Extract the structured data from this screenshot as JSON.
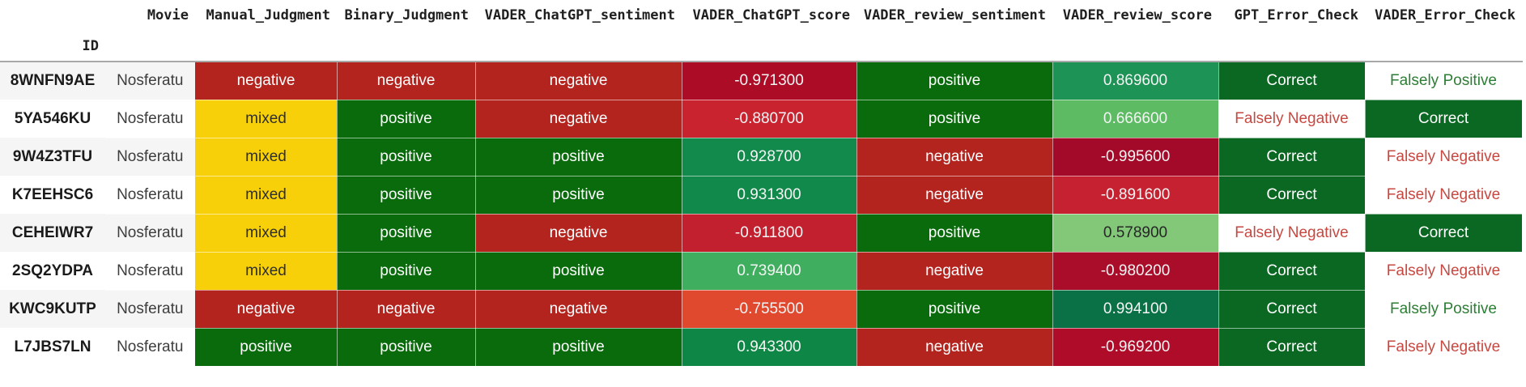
{
  "page": {
    "background": "#ffffff",
    "description": "Styled DataFrame output of movie review sentiment judgments"
  },
  "table": {
    "index_name": "ID",
    "columns": [
      "Movie",
      "Manual_Judgment",
      "Binary_Judgment",
      "VADER_ChatGPT_sentiment",
      "VADER_ChatGPT_score",
      "VADER_review_sentiment",
      "VADER_review_score",
      "GPT_Error_Check",
      "VADER_Error_Check"
    ],
    "colors": {
      "negative_bg": "#b3241f",
      "positive_bg": "#0a6b0c",
      "mixed_bg": "#f8d00a",
      "correct_bg": "#0b6823",
      "falsely_negative_text": "#c74841",
      "falsely_positive_text": "#2d7e35",
      "stripe_bg": "#f5f5f5",
      "header_text": "#1f1f1f"
    },
    "rows": [
      {
        "id": "8WNFN9AE",
        "cells": [
          {
            "text": "Nosferatu"
          },
          {
            "text": "negative",
            "bg": "#b3241f",
            "fg": "#ffffff"
          },
          {
            "text": "negative",
            "bg": "#b3241f",
            "fg": "#ffffff"
          },
          {
            "text": "negative",
            "bg": "#b3241f",
            "fg": "#ffffff"
          },
          {
            "text": "-0.971300",
            "bg": "#ad0c26",
            "fg": "#f5f5f5"
          },
          {
            "text": "positive",
            "bg": "#0a6b0c",
            "fg": "#ffffff"
          },
          {
            "text": "0.869600",
            "bg": "#1d9356",
            "fg": "#f5f5f5"
          },
          {
            "text": "Correct",
            "bg": "#0b6823",
            "fg": "#ffffff"
          },
          {
            "text": "Falsely Positive",
            "bg": "#ffffff",
            "fg": "#2d7e35"
          }
        ]
      },
      {
        "id": "5YA546KU",
        "cells": [
          {
            "text": "Nosferatu"
          },
          {
            "text": "mixed",
            "bg": "#f8d00a",
            "fg": "#2f2f2f"
          },
          {
            "text": "positive",
            "bg": "#0a6b0c",
            "fg": "#ffffff"
          },
          {
            "text": "negative",
            "bg": "#b3241f",
            "fg": "#ffffff"
          },
          {
            "text": "-0.880700",
            "bg": "#c92330",
            "fg": "#f5f5f5"
          },
          {
            "text": "positive",
            "bg": "#0a6b0c",
            "fg": "#ffffff"
          },
          {
            "text": "0.666600",
            "bg": "#5cbb63",
            "fg": "#f5f5f5"
          },
          {
            "text": "Falsely Negative",
            "bg": "#ffffff",
            "fg": "#c74841"
          },
          {
            "text": "Correct",
            "bg": "#0b6823",
            "fg": "#ffffff"
          }
        ]
      },
      {
        "id": "9W4Z3TFU",
        "cells": [
          {
            "text": "Nosferatu"
          },
          {
            "text": "mixed",
            "bg": "#f8d00a",
            "fg": "#2f2f2f"
          },
          {
            "text": "positive",
            "bg": "#0a6b0c",
            "fg": "#ffffff"
          },
          {
            "text": "positive",
            "bg": "#0a6b0c",
            "fg": "#ffffff"
          },
          {
            "text": "0.928700",
            "bg": "#118a4c",
            "fg": "#f5f5f5"
          },
          {
            "text": "negative",
            "bg": "#b3241f",
            "fg": "#ffffff"
          },
          {
            "text": "-0.995600",
            "bg": "#a30928",
            "fg": "#f5f5f5"
          },
          {
            "text": "Correct",
            "bg": "#0b6823",
            "fg": "#ffffff"
          },
          {
            "text": "Falsely Negative",
            "bg": "#ffffff",
            "fg": "#c74841"
          }
        ]
      },
      {
        "id": "K7EEHSC6",
        "cells": [
          {
            "text": "Nosferatu"
          },
          {
            "text": "mixed",
            "bg": "#f8d00a",
            "fg": "#2f2f2f"
          },
          {
            "text": "positive",
            "bg": "#0a6b0c",
            "fg": "#ffffff"
          },
          {
            "text": "positive",
            "bg": "#0a6b0c",
            "fg": "#ffffff"
          },
          {
            "text": "0.931300",
            "bg": "#10894a",
            "fg": "#f5f5f5"
          },
          {
            "text": "negative",
            "bg": "#b3241f",
            "fg": "#ffffff"
          },
          {
            "text": "-0.891600",
            "bg": "#c52130",
            "fg": "#f5f5f5"
          },
          {
            "text": "Correct",
            "bg": "#0b6823",
            "fg": "#ffffff"
          },
          {
            "text": "Falsely Negative",
            "bg": "#ffffff",
            "fg": "#c74841"
          }
        ]
      },
      {
        "id": "CEHEIWR7",
        "cells": [
          {
            "text": "Nosferatu"
          },
          {
            "text": "mixed",
            "bg": "#f8d00a",
            "fg": "#2f2f2f"
          },
          {
            "text": "positive",
            "bg": "#0a6b0c",
            "fg": "#ffffff"
          },
          {
            "text": "negative",
            "bg": "#b3241f",
            "fg": "#ffffff"
          },
          {
            "text": "-0.911800",
            "bg": "#c2202e",
            "fg": "#f5f5f5"
          },
          {
            "text": "positive",
            "bg": "#0a6b0c",
            "fg": "#ffffff"
          },
          {
            "text": "0.578900",
            "bg": "#82c878",
            "fg": "#262626"
          },
          {
            "text": "Falsely Negative",
            "bg": "#ffffff",
            "fg": "#c74841"
          },
          {
            "text": "Correct",
            "bg": "#0b6823",
            "fg": "#ffffff"
          }
        ]
      },
      {
        "id": "2SQ2YDPA",
        "cells": [
          {
            "text": "Nosferatu"
          },
          {
            "text": "mixed",
            "bg": "#f8d00a",
            "fg": "#2f2f2f"
          },
          {
            "text": "positive",
            "bg": "#0a6b0c",
            "fg": "#ffffff"
          },
          {
            "text": "positive",
            "bg": "#0a6b0c",
            "fg": "#ffffff"
          },
          {
            "text": "0.739400",
            "bg": "#3fae5e",
            "fg": "#f5f5f5"
          },
          {
            "text": "negative",
            "bg": "#b3241f",
            "fg": "#ffffff"
          },
          {
            "text": "-0.980200",
            "bg": "#a90d29",
            "fg": "#f5f5f5"
          },
          {
            "text": "Correct",
            "bg": "#0b6823",
            "fg": "#ffffff"
          },
          {
            "text": "Falsely Negative",
            "bg": "#ffffff",
            "fg": "#c74841"
          }
        ]
      },
      {
        "id": "KWC9KUTP",
        "cells": [
          {
            "text": "Nosferatu"
          },
          {
            "text": "negative",
            "bg": "#b3241f",
            "fg": "#ffffff"
          },
          {
            "text": "negative",
            "bg": "#b3241f",
            "fg": "#ffffff"
          },
          {
            "text": "negative",
            "bg": "#b3241f",
            "fg": "#ffffff"
          },
          {
            "text": "-0.755500",
            "bg": "#e1492f",
            "fg": "#f5f5f5"
          },
          {
            "text": "positive",
            "bg": "#0a6b0c",
            "fg": "#ffffff"
          },
          {
            "text": "0.994100",
            "bg": "#0a7045",
            "fg": "#f5f5f5"
          },
          {
            "text": "Correct",
            "bg": "#0b6823",
            "fg": "#ffffff"
          },
          {
            "text": "Falsely Positive",
            "bg": "#ffffff",
            "fg": "#2d7e35"
          }
        ]
      },
      {
        "id": "L7JBS7LN",
        "cells": [
          {
            "text": "Nosferatu"
          },
          {
            "text": "positive",
            "bg": "#0a6b0c",
            "fg": "#ffffff"
          },
          {
            "text": "positive",
            "bg": "#0a6b0c",
            "fg": "#ffffff"
          },
          {
            "text": "positive",
            "bg": "#0a6b0c",
            "fg": "#ffffff"
          },
          {
            "text": "0.943300",
            "bg": "#0e8746",
            "fg": "#f5f5f5"
          },
          {
            "text": "negative",
            "bg": "#b3241f",
            "fg": "#ffffff"
          },
          {
            "text": "-0.969200",
            "bg": "#ae0c29",
            "fg": "#f5f5f5"
          },
          {
            "text": "Correct",
            "bg": "#0b6823",
            "fg": "#ffffff"
          },
          {
            "text": "Falsely Negative",
            "bg": "#ffffff",
            "fg": "#c74841"
          }
        ]
      }
    ]
  }
}
